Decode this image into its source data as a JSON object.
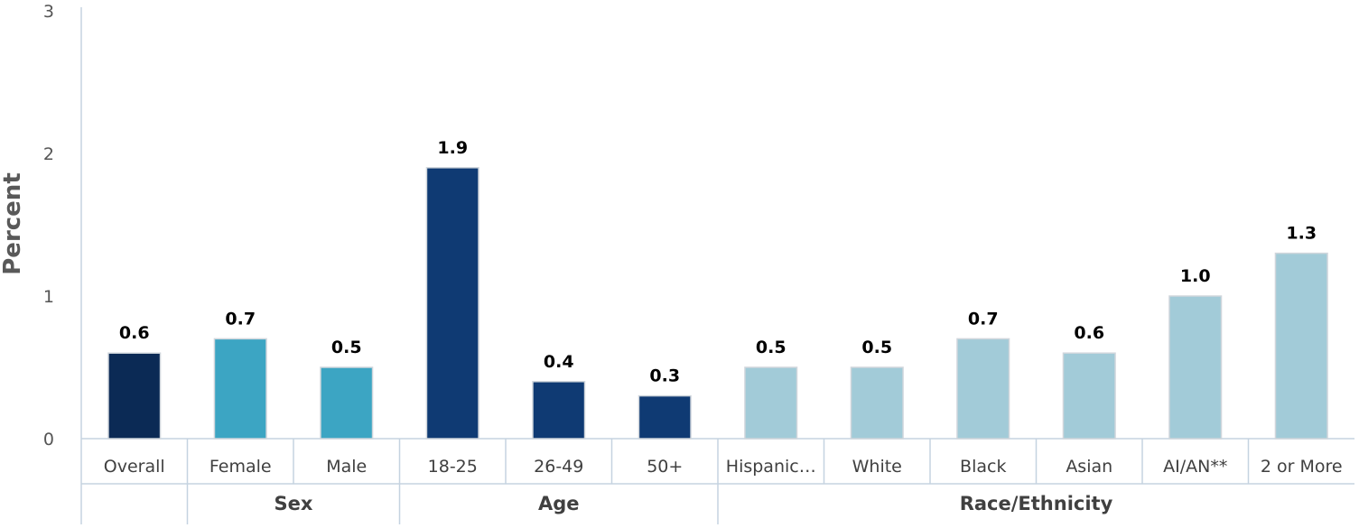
{
  "chart_data": {
    "type": "bar",
    "ylabel": "Percent",
    "ylim": [
      0,
      3
    ],
    "yticks": [
      0,
      1,
      2,
      3
    ],
    "grid": false,
    "categories": [
      "Overall",
      "Female",
      "Male",
      "18-25",
      "26-49",
      "50+",
      "Hispanic…",
      "White",
      "Black",
      "Asian",
      "AI/AN**",
      "2 or More"
    ],
    "values": [
      0.6,
      0.7,
      0.5,
      1.9,
      0.4,
      0.3,
      0.5,
      0.5,
      0.7,
      0.6,
      1.0,
      1.3
    ],
    "value_labels": [
      "0.6",
      "0.7",
      "0.5",
      "1.9",
      "0.4",
      "0.3",
      "0.5",
      "0.5",
      "0.7",
      "0.6",
      "1.0",
      "1.3"
    ],
    "groups": [
      {
        "label": "",
        "categories": [
          "Overall"
        ]
      },
      {
        "label": "Sex",
        "categories": [
          "Female",
          "Male"
        ]
      },
      {
        "label": "Age",
        "categories": [
          "18-25",
          "26-49",
          "50+"
        ]
      },
      {
        "label": "Race/Ethnicity",
        "categories": [
          "Hispanic…",
          "White",
          "Black",
          "Asian",
          "AI/AN**",
          "2 or More"
        ]
      }
    ],
    "colors": {
      "overall": "#0b2a55",
      "sex": "#3ca5c3",
      "age": "#0f3a73",
      "race": "#a2cbd8",
      "axis": "#c5d3e0"
    }
  }
}
